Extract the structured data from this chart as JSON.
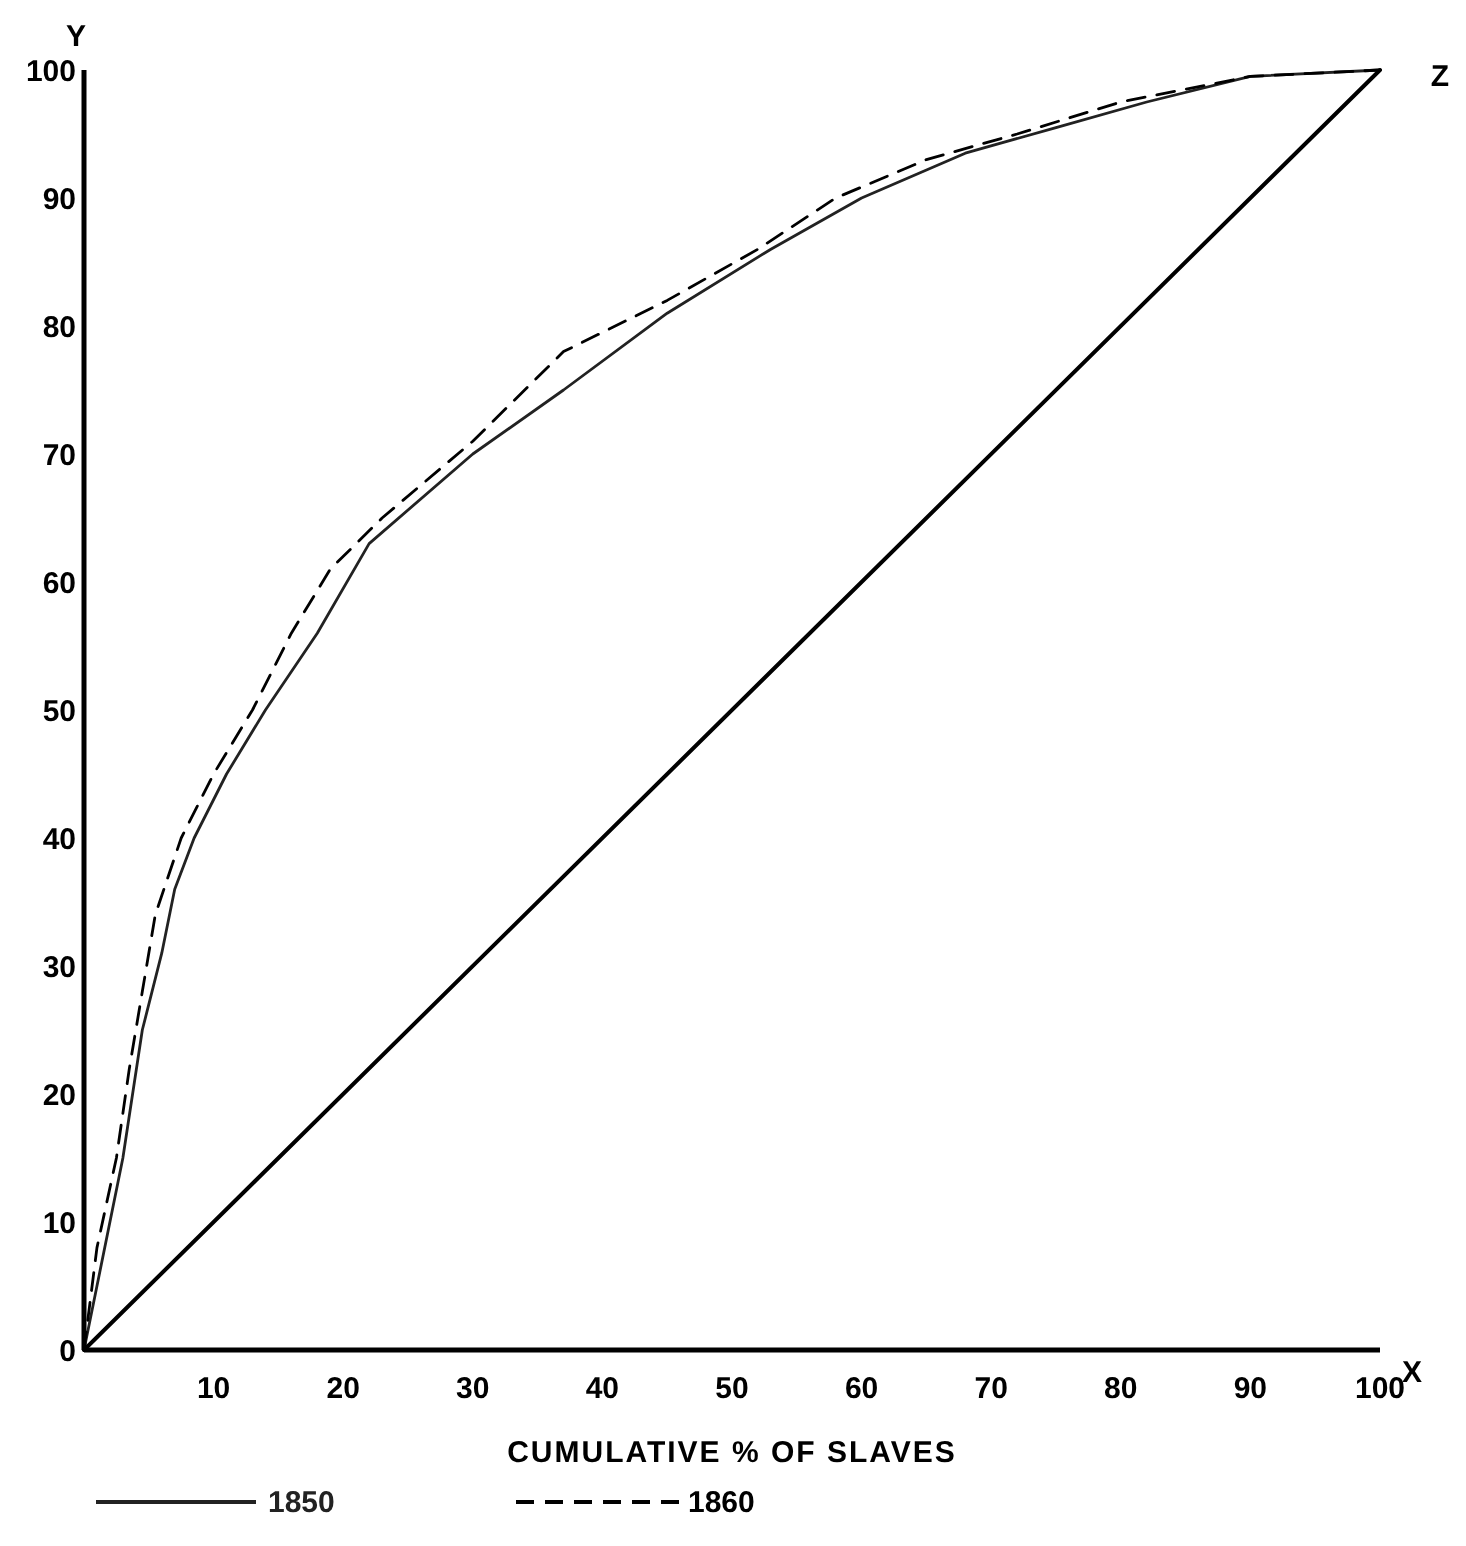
{
  "chart_data": {
    "type": "line",
    "xlabel": "CUMULATIVE % OF SLAVES",
    "annotations": [
      "Y",
      "X",
      "Z"
    ],
    "xlim": [
      0,
      100
    ],
    "ylim": [
      0,
      100
    ],
    "xticks": [
      10,
      20,
      30,
      40,
      50,
      60,
      70,
      80,
      90,
      100
    ],
    "yticks": [
      0,
      10,
      20,
      30,
      40,
      50,
      60,
      70,
      80,
      90,
      100
    ],
    "grid": false,
    "legend": "bottom",
    "marker": "none",
    "series": [
      {
        "name": "1850",
        "color": "#222222",
        "line_style": "solid",
        "x": [
          0,
          1,
          3,
          4.5,
          6,
          7,
          8.5,
          11,
          14,
          18,
          22,
          30,
          37,
          45,
          53,
          60,
          68,
          75,
          82,
          90,
          100
        ],
        "values": [
          0,
          5,
          15,
          25,
          31,
          36,
          40,
          45,
          50,
          56,
          63,
          70,
          75,
          81,
          86,
          90,
          93.5,
          95.5,
          97.5,
          99.5,
          100
        ]
      },
      {
        "name": "1860",
        "color": "#000000",
        "line_style": "dashed",
        "x": [
          0,
          1,
          2.5,
          3.5,
          4.5,
          5.5,
          7.5,
          10,
          13,
          16,
          19,
          23,
          30,
          37,
          45,
          52,
          58,
          65,
          72,
          80,
          90,
          100
        ],
        "values": [
          0,
          8,
          15,
          22,
          28,
          34,
          40,
          45,
          50,
          56,
          61,
          65,
          71,
          78,
          82,
          86,
          90,
          93,
          95,
          97.5,
          99.5,
          100
        ]
      },
      {
        "color": "#000000",
        "line_style": "solid",
        "x": [
          0,
          100
        ],
        "values": [
          0,
          100
        ]
      }
    ]
  }
}
